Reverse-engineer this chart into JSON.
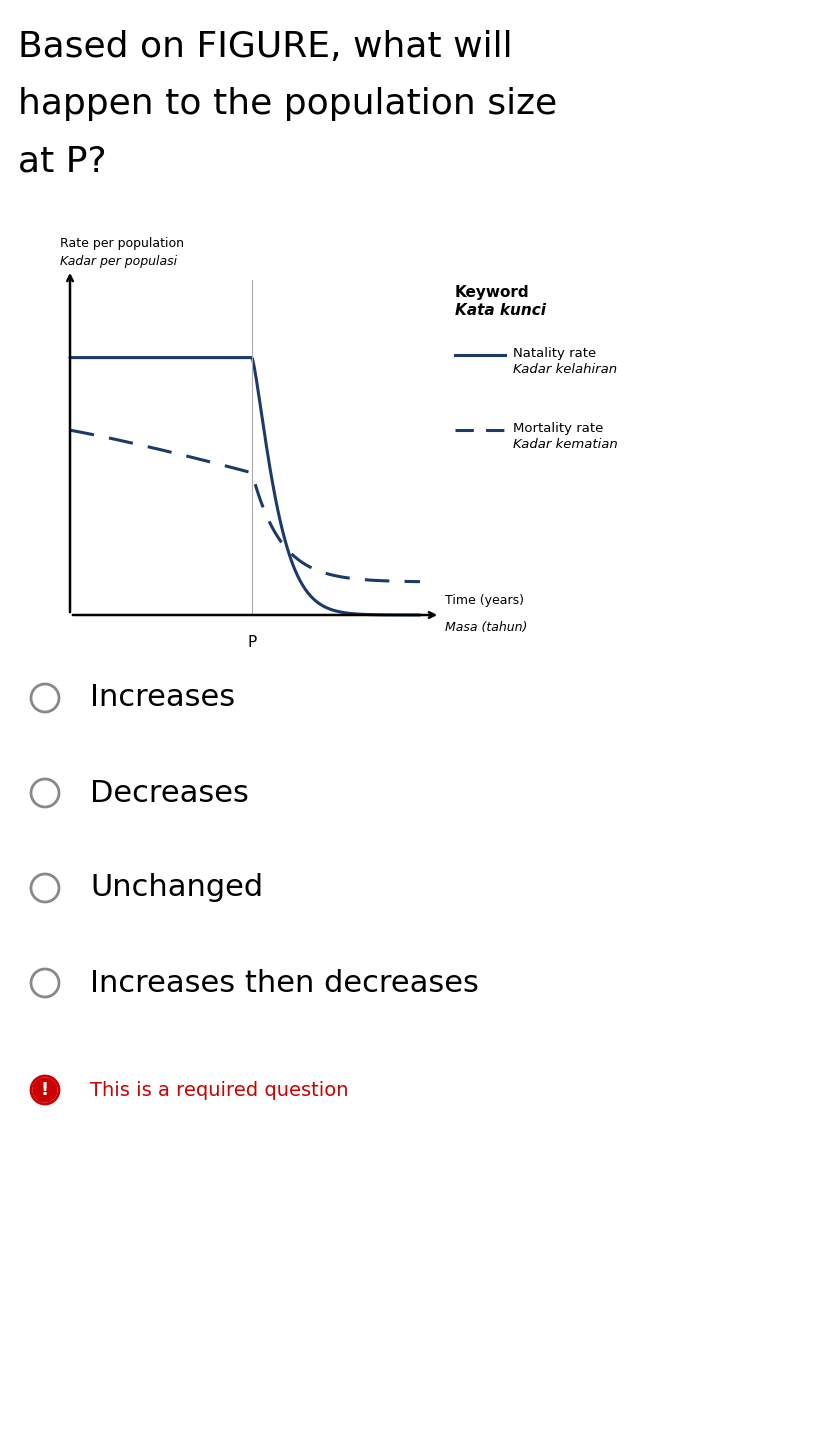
{
  "title_line1": "Based on FIGURE, what will",
  "title_line2": "happen to the population size",
  "title_line3": "at P?",
  "ylabel_line1": "Rate per population",
  "ylabel_line2": "Kadar per populasi",
  "xlabel_line1": "Time (years)",
  "xlabel_line2": "Masa (tahun)",
  "keyword_title": "Keyword",
  "keyword_title_italic": "Kata kunci",
  "legend_solid": "Natality rate",
  "legend_solid_italic": "Kadar kelahiran",
  "legend_dash": "Mortality rate",
  "legend_dash_italic": "Kadar kematian",
  "p_label": "P",
  "curve_color": "#1a3a6b",
  "options": [
    "Increases",
    "Decreases",
    "Unchanged",
    "Increases then decreases"
  ],
  "required_text": "This is a required question",
  "required_color": "#cc0000",
  "radio_color": "#888888",
  "background_color": "#ffffff",
  "title_fontsize": 26,
  "option_fontsize": 22,
  "label_fontsize": 9,
  "legend_fontsize": 10
}
